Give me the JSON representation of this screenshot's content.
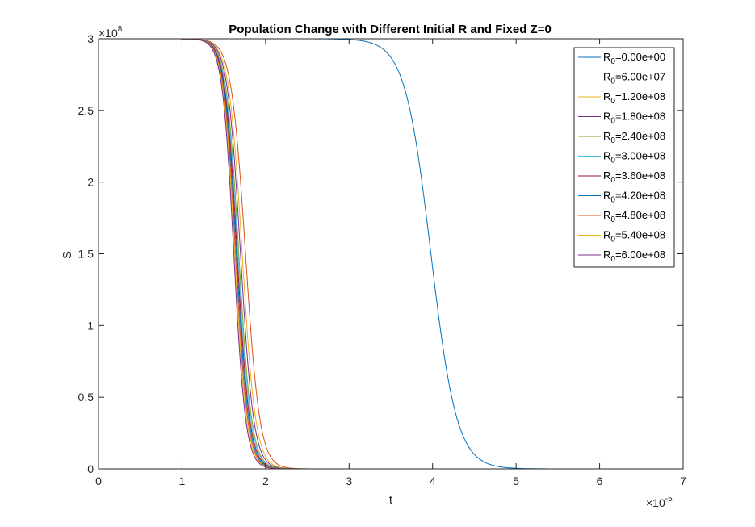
{
  "chart_data": {
    "type": "line",
    "title": "Population Change with Different Initial R and Fixed Z=0",
    "xlabel": "t",
    "ylabel": "S",
    "xlim": [
      0,
      7e-05
    ],
    "ylim": [
      0,
      300000000.0
    ],
    "x_ticks": [
      0,
      1,
      2,
      3,
      4,
      5,
      6,
      7
    ],
    "y_ticks": [
      0,
      0.5,
      1,
      1.5,
      2,
      2.5,
      3
    ],
    "x_exponent": "×10",
    "x_exponent_power": "-5",
    "y_exponent": "×10",
    "y_exponent_power": "8",
    "grid": false,
    "legend_position": "top-right",
    "legend_subscript": "0",
    "series": [
      {
        "name": "R",
        "legend_value": "=0.00e+00",
        "color": "#0072BD",
        "midpoint": 3.98e-05,
        "width": 1.55e-06
      },
      {
        "name": "R",
        "legend_value": "=6.00e+07",
        "color": "#D95319",
        "midpoint": 1.76e-05,
        "width": 8.5e-07
      },
      {
        "name": "R",
        "legend_value": "=1.20e+08",
        "color": "#EDB120",
        "midpoint": 1.72e-05,
        "width": 8e-07
      },
      {
        "name": "R",
        "legend_value": "=1.80e+08",
        "color": "#7E2F8E",
        "midpoint": 1.7e-05,
        "width": 7.8e-07
      },
      {
        "name": "R",
        "legend_value": "=2.40e+08",
        "color": "#77AC30",
        "midpoint": 1.68e-05,
        "width": 7.6e-07
      },
      {
        "name": "R",
        "legend_value": "=3.00e+08",
        "color": "#4DBEEE",
        "midpoint": 1.67e-05,
        "width": 7.5e-07
      },
      {
        "name": "R",
        "legend_value": "=3.60e+08",
        "color": "#A2142F",
        "midpoint": 1.66e-05,
        "width": 7.4e-07
      },
      {
        "name": "R",
        "legend_value": "=4.20e+08",
        "color": "#0072BD",
        "midpoint": 1.65e-05,
        "width": 7.3e-07
      },
      {
        "name": "R",
        "legend_value": "=4.80e+08",
        "color": "#D95319",
        "midpoint": 1.64e-05,
        "width": 7.2e-07
      },
      {
        "name": "R",
        "legend_value": "=5.40e+08",
        "color": "#EDB120",
        "midpoint": 1.63e-05,
        "width": 7.1e-07
      },
      {
        "name": "R",
        "legend_value": "=6.00e+08",
        "color": "#7E2F8E",
        "midpoint": 1.62e-05,
        "width": 7e-07
      }
    ],
    "initial_S": 300000000.0
  }
}
